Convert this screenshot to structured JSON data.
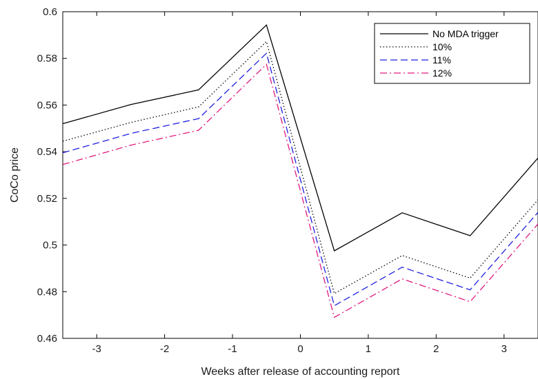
{
  "chart_data": {
    "type": "line",
    "title": "",
    "xlabel": "Weeks after release of accounting report",
    "ylabel": "CoCo price",
    "xlim": [
      -3.5,
      3.5
    ],
    "ylim": [
      0.46,
      0.6
    ],
    "xticks": [
      -3,
      -2,
      -1,
      0,
      1,
      2,
      3
    ],
    "xtick_labels": [
      "-3",
      "-2",
      "-1",
      "0",
      "1",
      "2",
      "3"
    ],
    "yticks": [
      0.46,
      0.48,
      0.5,
      0.52,
      0.54,
      0.56,
      0.58,
      0.6
    ],
    "ytick_labels": [
      "0.46",
      "0.48",
      "0.5",
      "0.52",
      "0.54",
      "0.56",
      "0.58",
      "0.6"
    ],
    "grid": false,
    "legend_position": "top-right",
    "x": [
      -3.5,
      -2.5,
      -1.5,
      -0.5,
      0.5,
      1.5,
      2.5,
      3.5
    ],
    "series": [
      {
        "name": "No MDA trigger",
        "color": "#000000",
        "dash": "solid",
        "values": [
          0.552,
          0.5602,
          0.5665,
          0.5943,
          0.4975,
          0.5138,
          0.504,
          0.5373
        ]
      },
      {
        "name": "10%",
        "color": "#000000",
        "dash": "dotted",
        "values": [
          0.5445,
          0.5525,
          0.5592,
          0.5872,
          0.4792,
          0.4955,
          0.4858,
          0.5194
        ]
      },
      {
        "name": "11%",
        "color": "#1f1fe0",
        "dash": "dashed",
        "values": [
          0.5395,
          0.5478,
          0.5542,
          0.5822,
          0.474,
          0.4905,
          0.4808,
          0.514
        ]
      },
      {
        "name": "12%",
        "color": "#e0197d",
        "dash": "dashdot",
        "values": [
          0.5345,
          0.5428,
          0.5492,
          0.5775,
          0.469,
          0.4855,
          0.4757,
          0.509
        ]
      }
    ]
  }
}
